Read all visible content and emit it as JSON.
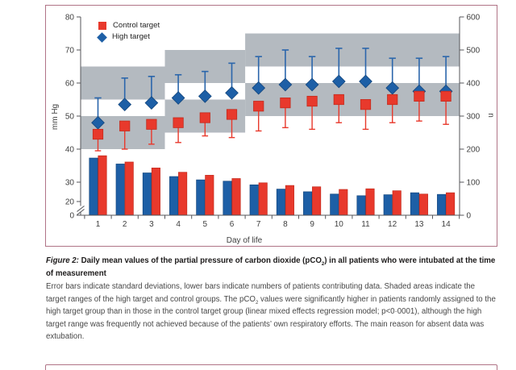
{
  "legend": {
    "items": [
      {
        "label": "Control target",
        "marker": "square",
        "color": "#e8392c"
      },
      {
        "label": "High target",
        "marker": "diamond",
        "color": "#1d5fa6"
      }
    ]
  },
  "colors": {
    "control_red": "#e8392c",
    "control_red_dark": "#c32b1d",
    "high_blue": "#1d5fa6",
    "high_blue_dark": "#14477e",
    "band_gray": "#b4bac0",
    "axis": "#55565a",
    "tick_text": "#3e3e3e",
    "panel_border": "#b07487"
  },
  "chart_data": {
    "type": "combo_scatter_errorbar_bar",
    "x": [
      1,
      2,
      3,
      4,
      5,
      6,
      7,
      8,
      9,
      10,
      11,
      12,
      13,
      14
    ],
    "xlabel": "Day of life",
    "ylabel_left": "mm Hg",
    "ylabel_right": "n",
    "axes": {
      "left": {
        "ticks": [
          0,
          20,
          30,
          40,
          50,
          60,
          70,
          80
        ],
        "break_between": [
          0,
          20
        ],
        "lim": [
          0,
          80
        ]
      },
      "right": {
        "ticks": [
          0,
          100,
          200,
          300,
          400,
          500,
          600
        ],
        "lim": [
          0,
          600
        ]
      },
      "x": {
        "ticks": [
          1,
          2,
          3,
          4,
          5,
          6,
          7,
          8,
          9,
          10,
          11,
          12,
          13,
          14
        ]
      }
    },
    "series": [
      {
        "name": "High target",
        "marker": "diamond",
        "color": "#1d5fa6",
        "means": [
          48,
          53.5,
          54,
          55.5,
          56,
          57,
          58.5,
          59.5,
          59.5,
          60.5,
          60.5,
          58.5,
          57.5,
          57.5
        ],
        "whisker_upper": [
          55.5,
          61.5,
          62,
          62.5,
          63.5,
          66,
          68,
          70,
          68,
          70.5,
          70.5,
          67.5,
          67.5,
          68
        ]
      },
      {
        "name": "Control target",
        "marker": "square",
        "color": "#e8392c",
        "means": [
          44.5,
          47,
          47.5,
          48,
          49.5,
          50.5,
          53,
          54,
          54.5,
          55,
          53.5,
          55,
          56,
          56
        ],
        "whisker_lower": [
          39.5,
          40,
          41.5,
          42,
          44,
          43.5,
          45.5,
          46.5,
          46,
          48,
          46,
          48,
          48.5,
          47.5
        ]
      }
    ],
    "bars": [
      {
        "name": "High target n",
        "color": "#1d5fa6",
        "values": [
          173,
          155,
          128,
          117,
          107,
          103,
          92,
          79,
          71,
          64,
          59,
          62,
          68,
          63
        ]
      },
      {
        "name": "Control target n",
        "color": "#e8392c",
        "values": [
          180,
          161,
          143,
          130,
          121,
          111,
          98,
          90,
          86,
          78,
          80,
          74,
          64,
          68
        ]
      }
    ],
    "target_bands": {
      "color": "#b4bac0",
      "high": [
        {
          "days": [
            1,
            3
          ],
          "range": [
            55,
            65
          ]
        },
        {
          "days": [
            4,
            6
          ],
          "range": [
            60,
            70
          ]
        },
        {
          "days": [
            7,
            14
          ],
          "range": [
            65,
            75
          ]
        }
      ],
      "control": [
        {
          "days": [
            1,
            3
          ],
          "range": [
            40,
            50
          ]
        },
        {
          "days": [
            4,
            6
          ],
          "range": [
            45,
            55
          ]
        },
        {
          "days": [
            7,
            14
          ],
          "range": [
            50,
            60
          ]
        }
      ]
    },
    "legend_position": "top-left",
    "grid": false
  },
  "caption": {
    "figure_label": "Figure 2:",
    "title_parts": [
      {
        "t": "Daily mean values of the partial pressure of carbon dioxide (pCO"
      },
      {
        "sub": "2"
      },
      {
        "t": ") in all patients who were intubated at the time of measurement"
      }
    ],
    "body_parts": [
      {
        "t": "Error bars indicate standard deviations, lower bars indicate numbers of patients contributing data. Shaded areas indicate the target ranges of the high target and control groups. The pCO"
      },
      {
        "sub": "2"
      },
      {
        "t": " values were significantly higher in patients randomly assigned to the high target group than in those in the control target group (linear mixed effects regression model; p<0·0001), although the high target range was frequently not achieved because of the patients’ own respiratory efforts. The main reason for absent data was extubation."
      }
    ]
  }
}
